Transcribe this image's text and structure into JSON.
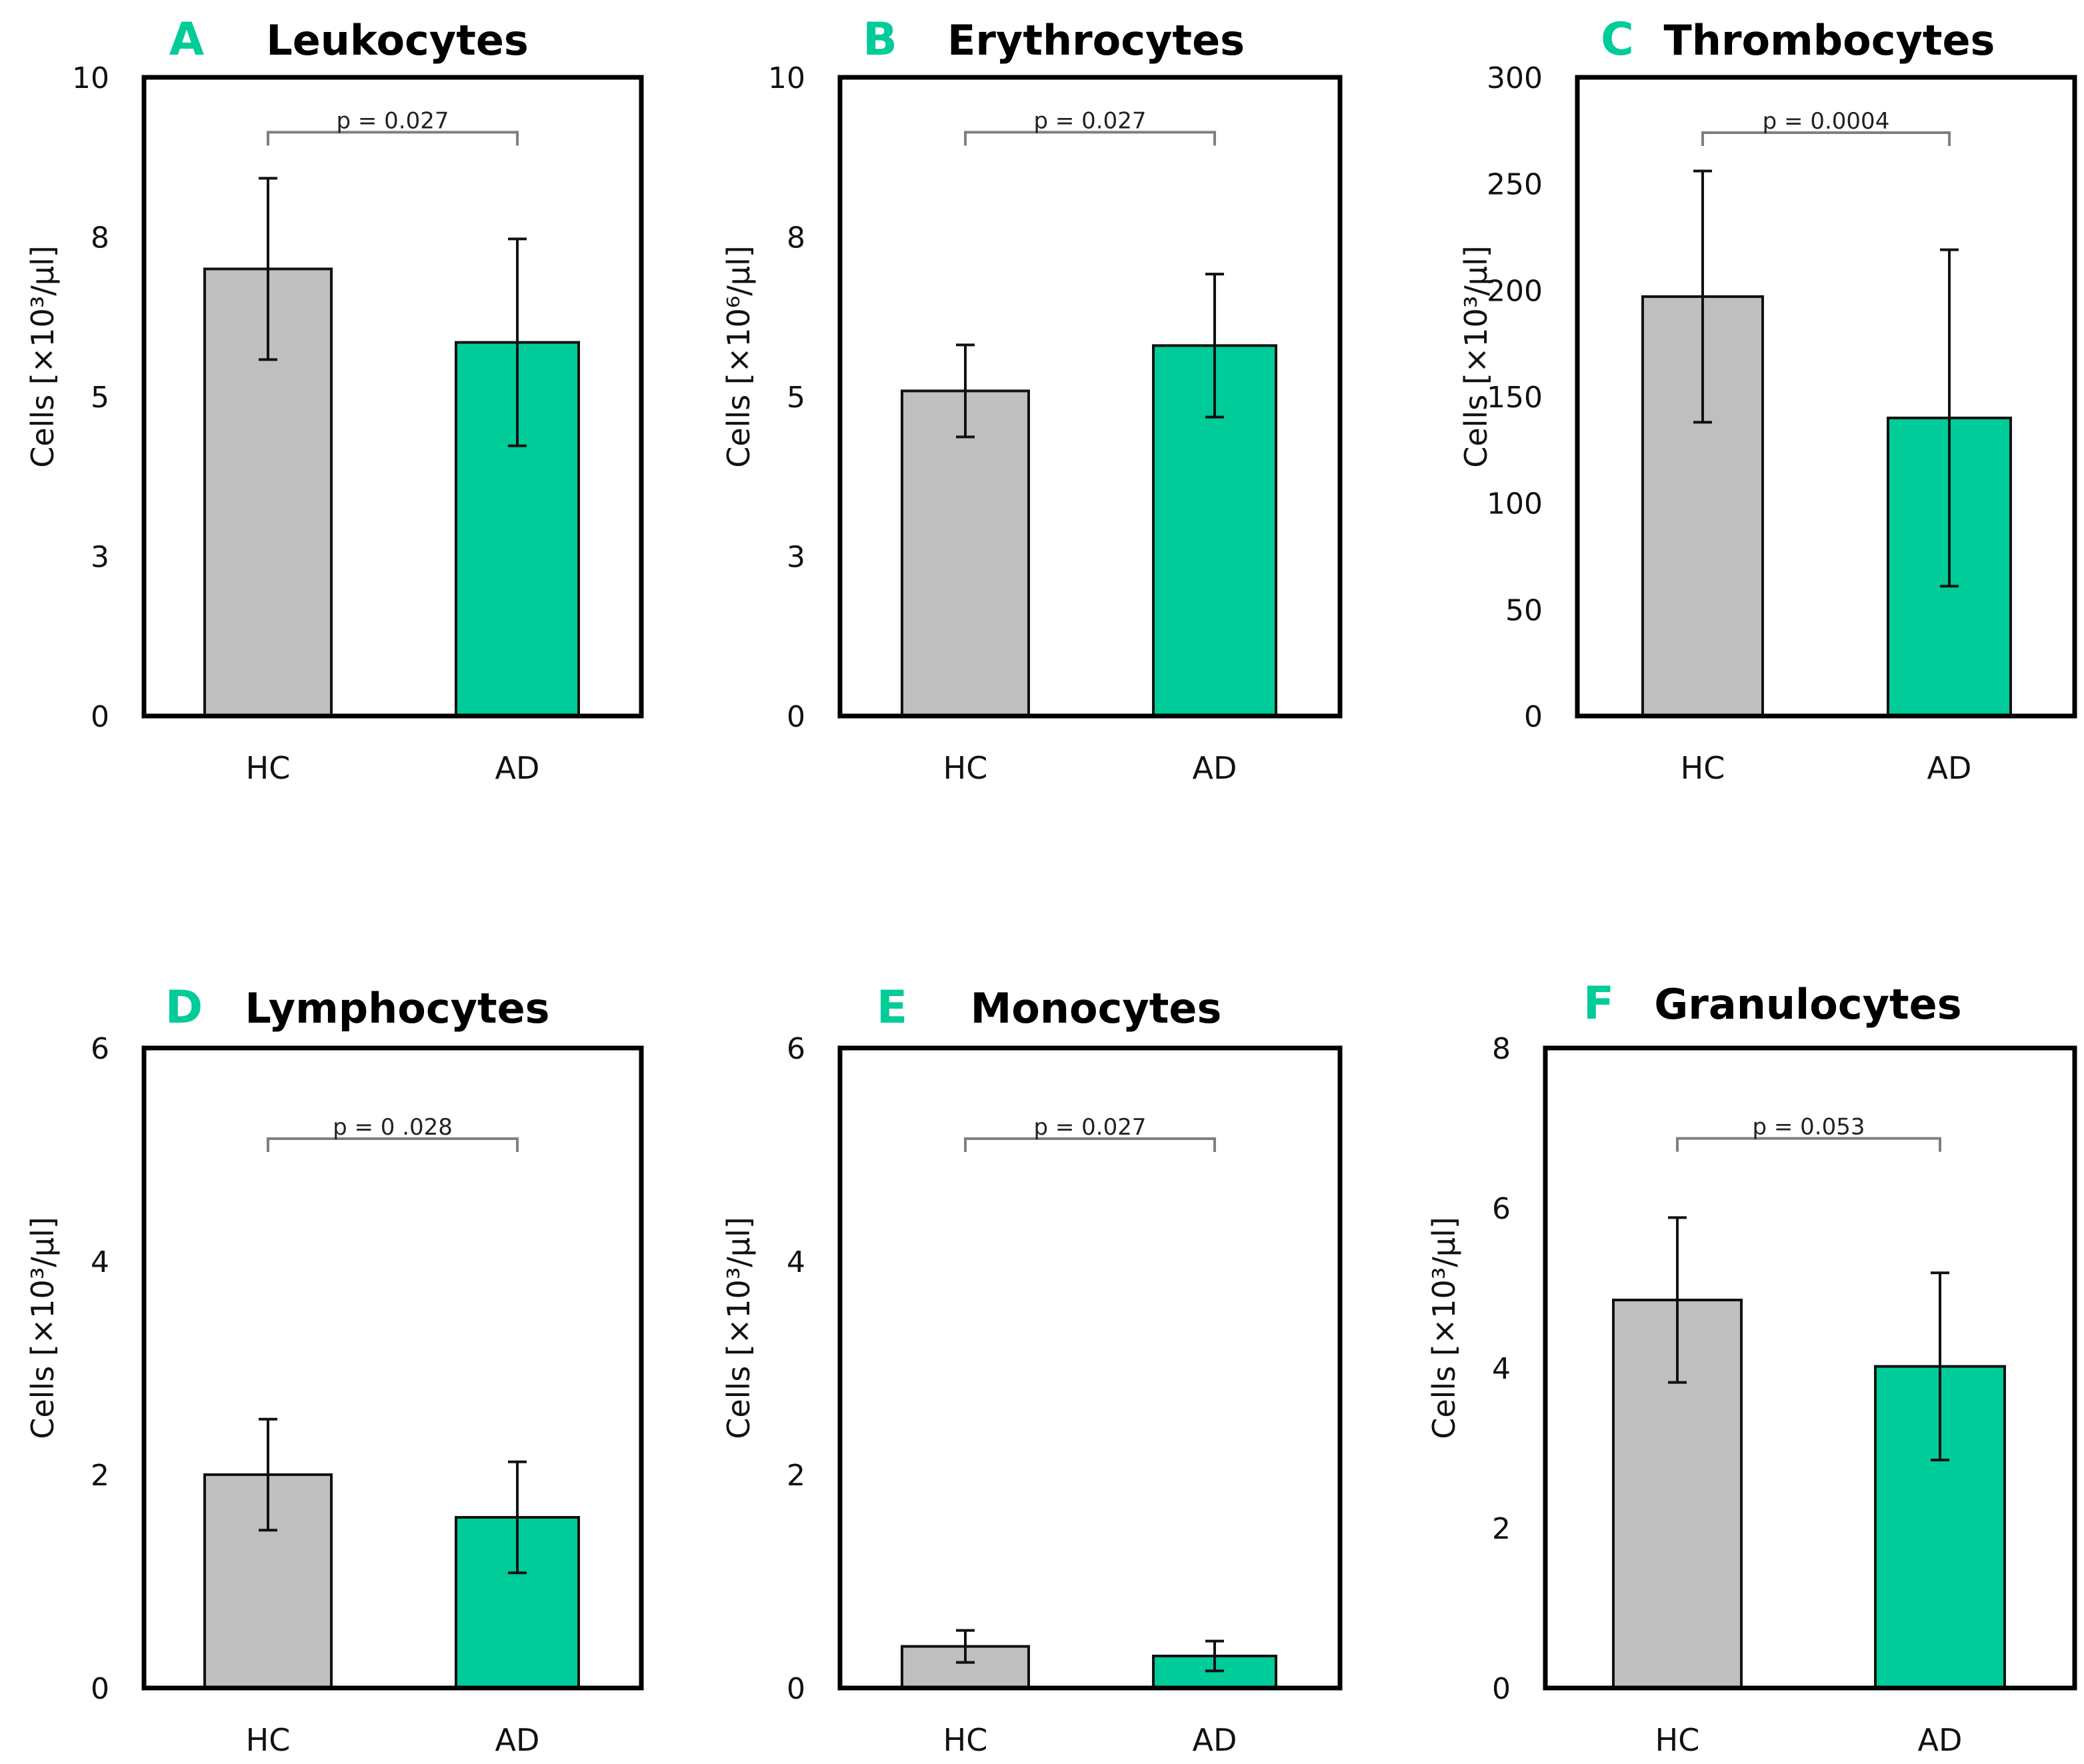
{
  "colors": {
    "hc": "#BFBFBF",
    "ad": "#00CC99",
    "letter": "#00CC99",
    "bracket": "#7F7F7F"
  },
  "chart_data": [
    {
      "type": "bar",
      "letter": "A",
      "title": "Leukocytes",
      "ylabel": "Cells [×10³/µl]",
      "ylim": [
        0,
        10
      ],
      "ticks": [
        0,
        2.5,
        5,
        7.5,
        10
      ],
      "tick_labels": [
        "0",
        "3",
        "5",
        "8",
        "10"
      ],
      "categories": [
        "HC",
        "AD"
      ],
      "values": [
        7.0,
        5.85
      ],
      "errors": [
        1.42,
        1.62
      ],
      "p_label": "p = 0.027",
      "bracket_y": 9.14
    },
    {
      "type": "bar",
      "letter": "B",
      "title": "Erythrocytes",
      "ylabel": "Cells [×10⁶/µl]",
      "ylim": [
        0,
        10
      ],
      "ticks": [
        0,
        2.5,
        5,
        7.5,
        10
      ],
      "tick_labels": [
        "0",
        "3",
        "5",
        "8",
        "10"
      ],
      "categories": [
        "HC",
        "AD"
      ],
      "values": [
        5.09,
        5.8
      ],
      "errors": [
        0.72,
        1.12
      ],
      "p_label": "p = 0.027",
      "bracket_y": 9.14
    },
    {
      "type": "bar",
      "letter": "C",
      "title": "Thrombocytes",
      "ylabel": "Cells [×10³/µl]",
      "ylim": [
        0,
        300
      ],
      "ticks": [
        0,
        50,
        100,
        150,
        200,
        250,
        300
      ],
      "tick_labels": [
        "0",
        "50",
        "100",
        "150",
        "200",
        "250",
        "300"
      ],
      "categories": [
        "HC",
        "AD"
      ],
      "values": [
        197,
        140
      ],
      "errors": [
        59,
        79
      ],
      "p_label": "p = 0.0004",
      "bracket_y": 274
    },
    {
      "type": "bar",
      "letter": "D",
      "title": "Lymphocytes",
      "ylabel": "Cells [×10³/µl]",
      "ylim": [
        0,
        6
      ],
      "ticks": [
        0,
        2,
        4,
        6
      ],
      "tick_labels": [
        "0",
        "2",
        "4",
        "6"
      ],
      "categories": [
        "HC",
        "AD"
      ],
      "values": [
        2.0,
        1.6
      ],
      "errors": [
        0.52,
        0.52
      ],
      "p_label": "p = 0 .028",
      "bracket_y": 5.15
    },
    {
      "type": "bar",
      "letter": "E",
      "title": "Monocytes",
      "ylabel": "Cells [×10³/µl]",
      "ylim": [
        0,
        6
      ],
      "ticks": [
        0,
        2,
        4,
        6
      ],
      "tick_labels": [
        "0",
        "2",
        "4",
        "6"
      ],
      "categories": [
        "HC",
        "AD"
      ],
      "values": [
        0.39,
        0.3
      ],
      "errors": [
        0.15,
        0.14
      ],
      "p_label": "p = 0.027",
      "bracket_y": 5.15
    },
    {
      "type": "bar",
      "letter": "F",
      "title": "Granulocytes",
      "ylabel": "Cells [×10³/µl]",
      "ylim": [
        0,
        8
      ],
      "ticks": [
        0,
        2,
        4,
        6,
        8
      ],
      "tick_labels": [
        "0",
        "2",
        "4",
        "6",
        "8"
      ],
      "categories": [
        "HC",
        "AD"
      ],
      "values": [
        4.85,
        4.02
      ],
      "errors": [
        1.03,
        1.17
      ],
      "p_label": "p = 0.053",
      "bracket_y": 6.87
    }
  ]
}
